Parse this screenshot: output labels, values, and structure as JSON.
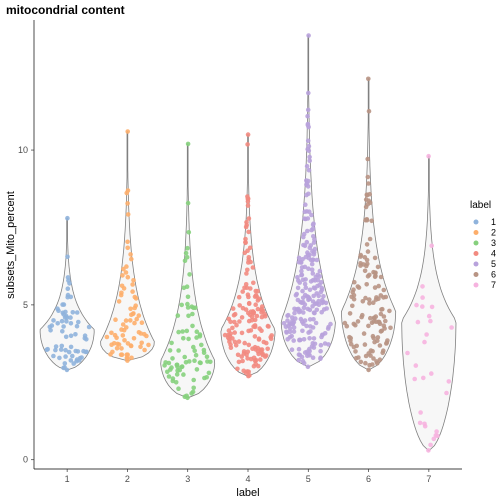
{
  "chart_data": {
    "type": "violin",
    "title": "mitocondrial content",
    "xlabel": "label",
    "ylabel": "subsets_Mito_percent",
    "categories": [
      "1",
      "2",
      "3",
      "4",
      "5",
      "6",
      "7"
    ],
    "ylim": [
      -0.3,
      14.2
    ],
    "y_ticks": [
      "0",
      "5",
      "10"
    ],
    "grid": false,
    "legend": {
      "title": "label",
      "placement": "right",
      "entries": [
        "1",
        "2",
        "3",
        "4",
        "5",
        "6",
        "7"
      ]
    },
    "colors": [
      "#8fb3dc",
      "#fdae6b",
      "#86d07d",
      "#f28a80",
      "#b8a2dc",
      "#b89484",
      "#f6b3df"
    ],
    "series": [
      {
        "name": "1",
        "min": 2.9,
        "max": 7.8,
        "mode": 4.2,
        "n": 70
      },
      {
        "name": "2",
        "min": 3.2,
        "max": 10.6,
        "mode": 3.8,
        "n": 75
      },
      {
        "name": "3",
        "min": 2.0,
        "max": 10.2,
        "mode": 3.2,
        "n": 80
      },
      {
        "name": "4",
        "min": 2.7,
        "max": 10.5,
        "mode": 4.2,
        "n": 150
      },
      {
        "name": "5",
        "min": 3.0,
        "max": 13.7,
        "mode": 4.5,
        "n": 220
      },
      {
        "name": "6",
        "min": 2.9,
        "max": 12.3,
        "mode": 4.8,
        "n": 130
      },
      {
        "name": "7",
        "min": 0.3,
        "max": 9.8,
        "mode": 4.5,
        "n": 30
      }
    ]
  }
}
